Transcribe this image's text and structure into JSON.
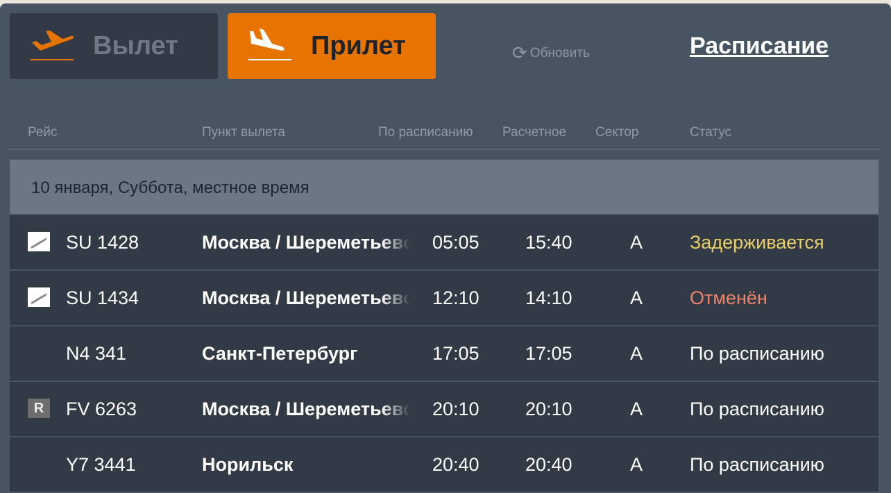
{
  "tabs": {
    "departure": "Вылет",
    "arrival": "Прилет",
    "active": "arrival"
  },
  "refresh_label": "Обновить",
  "schedule_link": "Расписание",
  "columns": [
    "Рейс",
    "Пункт вылета",
    "По расписанию",
    "Расчетное",
    "Сектор",
    "Статус"
  ],
  "date_band": "10 января, Суббота, местное время",
  "colors": {
    "accent": "#e87400",
    "delayed": "#e8cf6a",
    "cancelled": "#f0826a",
    "normal": "#ffffff"
  },
  "flights": [
    {
      "flight": "SU 1428",
      "city": "Москва / Шереметьево",
      "scheduled": "05:05",
      "estimated": "15:40",
      "sector": "A",
      "status": "Задерживается",
      "status_type": "delayed",
      "logo": "aeroflot-logo"
    },
    {
      "flight": "SU 1434",
      "city": "Москва / Шереметьево",
      "scheduled": "12:10",
      "estimated": "14:10",
      "sector": "A",
      "status": "Отменён",
      "status_type": "cancelled",
      "logo": "aeroflot-logo"
    },
    {
      "flight": "N4 341",
      "city": "Санкт-Петербург",
      "scheduled": "17:05",
      "estimated": "17:05",
      "sector": "A",
      "status": "По расписанию",
      "status_type": "normal",
      "logo": ""
    },
    {
      "flight": "FV 6263",
      "city": "Москва / Шереметьево",
      "scheduled": "20:10",
      "estimated": "20:10",
      "sector": "A",
      "status": "По расписанию",
      "status_type": "normal",
      "logo": "rossiya-logo"
    },
    {
      "flight": "Y7 3441",
      "city": "Норильск",
      "scheduled": "20:40",
      "estimated": "20:40",
      "sector": "A",
      "status": "По расписанию",
      "status_type": "normal",
      "logo": ""
    }
  ]
}
